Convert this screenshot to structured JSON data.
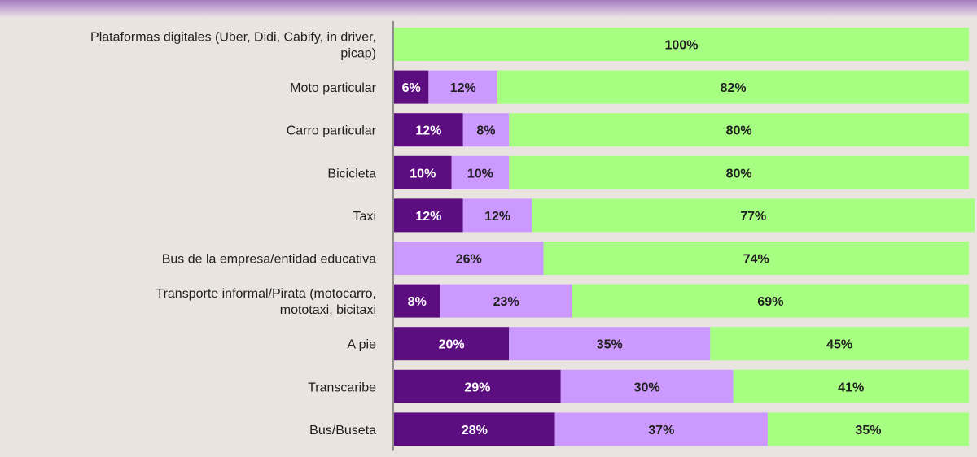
{
  "chart_data": {
    "type": "bar",
    "orientation": "horizontal",
    "stacked": true,
    "xlim": [
      0,
      100
    ],
    "grid": false,
    "legend": "none",
    "categories": [
      [
        "Plataformas digitales (Uber, Didi, Cabify, in driver,",
        "picap)"
      ],
      [
        "Moto particular"
      ],
      [
        "Carro particular"
      ],
      [
        "Bicicleta"
      ],
      [
        "Taxi"
      ],
      [
        "Bus de la empresa/entidad educativa"
      ],
      [
        "Transporte informal/Pirata (motocarro,",
        "mototaxi, bicitaxi"
      ],
      [
        "A pie"
      ],
      [
        "Transcaribe"
      ],
      [
        "Bus/Buseta"
      ]
    ],
    "series": [
      {
        "values": [
          0,
          6,
          12,
          10,
          12,
          0,
          8,
          20,
          29,
          28
        ],
        "color": "#5c0d80",
        "label_color": "#ffffff"
      },
      {
        "values": [
          0,
          12,
          8,
          10,
          12,
          26,
          23,
          35,
          30,
          37
        ],
        "color": "#cc99ff",
        "label_color": "#1f1f1f"
      },
      {
        "values": [
          100,
          82,
          80,
          80,
          77,
          74,
          69,
          45,
          41,
          35
        ],
        "color": "#a6ff80",
        "label_color": "#1f1f1f"
      }
    ],
    "value_suffix": "%",
    "axis_color": "#555555"
  }
}
